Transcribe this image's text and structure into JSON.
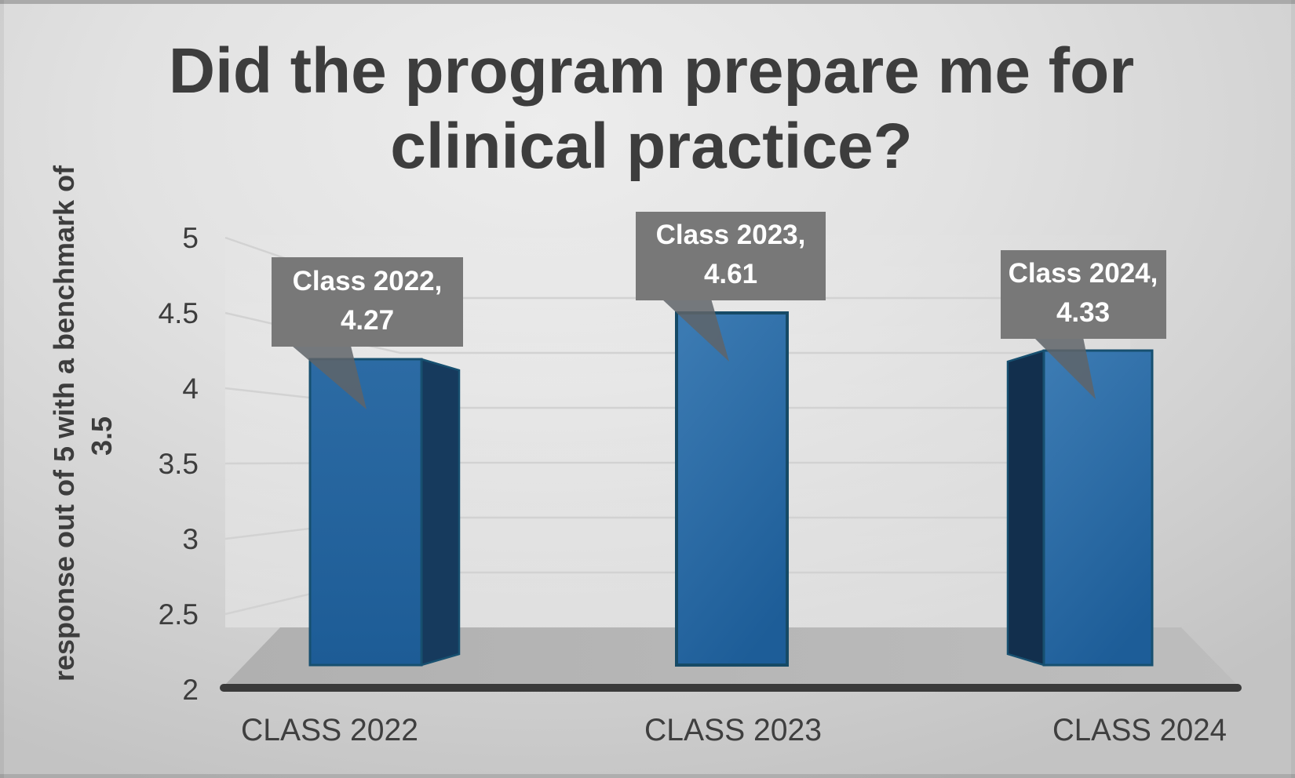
{
  "title": {
    "line1": "Did the program prepare me for",
    "line2": "clinical practice?"
  },
  "y_axis": {
    "label_line1": "response out of 5 with a benchmark of",
    "label_line2": "3.5",
    "ticks": [
      "5",
      "4.5",
      "4",
      "3.5",
      "3",
      "2.5",
      "2"
    ]
  },
  "x_axis": {
    "categories": [
      "CLASS 2022",
      "CLASS 2023",
      "CLASS 2024"
    ]
  },
  "callouts": [
    {
      "line1": "Class 2022,",
      "line2": "4.27"
    },
    {
      "line1": "Class 2023,",
      "line2": "4.61"
    },
    {
      "line1": "Class 2024,",
      "line2": "4.33"
    }
  ],
  "chart_data": {
    "type": "bar",
    "categories": [
      "CLASS 2022",
      "CLASS 2023",
      "CLASS 2024"
    ],
    "values": [
      4.27,
      4.61,
      4.33
    ],
    "title": "Did the program prepare me for clinical practice?",
    "xlabel": "",
    "ylabel": "response out of 5 with a benchmark of 3.5",
    "ylim": [
      2,
      5
    ],
    "yticks": [
      2,
      2.5,
      3,
      3.5,
      4,
      4.5,
      5
    ],
    "benchmark": 3.5,
    "grid": "on",
    "legend": "none",
    "style": "3d-column",
    "data_labels": [
      "Class 2022, 4.27",
      "Class 2023, 4.61",
      "Class 2024, 4.33"
    ],
    "colors": {
      "bar_front": "#2266a0",
      "bar_side_dark": "#143457",
      "bar_edge": "#175070",
      "callout_bg": "#787878",
      "callout_text": "#ffffff",
      "axis_line": "#3a3a3a",
      "floor": "#b5b5b5",
      "gridline": "#d2d2d2",
      "text": "#3d3d3d"
    }
  }
}
